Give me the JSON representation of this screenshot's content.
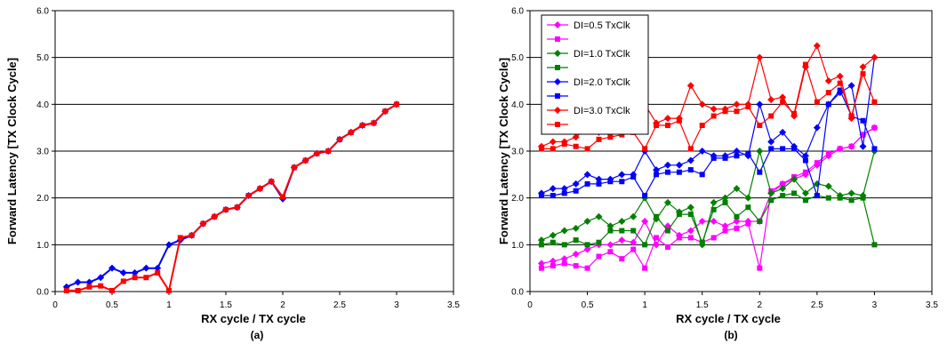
{
  "chart_data": [
    {
      "type": "line",
      "caption": "(a)",
      "xlabel": "RX cycle / TX cycle",
      "ylabel": "Forward Latency [TX Clock Cycle]",
      "xlim": [
        0,
        3.5
      ],
      "ylim": [
        0,
        6
      ],
      "x_ticks": [
        "0",
        "0.5",
        "1",
        "1.5",
        "2",
        "2.5",
        "3",
        "3.5"
      ],
      "y_ticks": [
        "0.0",
        "1.0",
        "2.0",
        "3.0",
        "4.0",
        "5.0",
        "6.0"
      ],
      "grid": "horizontal",
      "series": [
        {
          "color": "#0000ff",
          "marker": "diamond",
          "x": [
            0.1,
            0.2,
            0.3,
            0.4,
            0.5,
            0.6,
            0.7,
            0.8,
            0.9,
            1.0,
            1.1,
            1.2,
            1.3,
            1.4,
            1.5,
            1.6,
            1.7,
            1.8,
            1.9,
            2.0,
            2.1,
            2.2,
            2.3,
            2.4,
            2.5,
            2.6,
            2.7,
            2.8,
            2.9,
            3.0
          ],
          "y": [
            0.1,
            0.2,
            0.2,
            0.3,
            0.5,
            0.4,
            0.4,
            0.5,
            0.5,
            1.0,
            1.1,
            1.2,
            1.45,
            1.6,
            1.75,
            1.8,
            2.05,
            2.2,
            2.35,
            1.98,
            2.65,
            2.8,
            2.95,
            3.0,
            3.25,
            3.4,
            3.55,
            3.6,
            3.85,
            4.0
          ]
        },
        {
          "color": "#ff0000",
          "marker": "square",
          "x": [
            0.1,
            0.2,
            0.3,
            0.4,
            0.5,
            0.6,
            0.7,
            0.8,
            0.9,
            1.0,
            1.1,
            1.2,
            1.3,
            1.4,
            1.5,
            1.6,
            1.7,
            1.8,
            1.9,
            2.0,
            2.1,
            2.2,
            2.3,
            2.4,
            2.5,
            2.6,
            2.7,
            2.8,
            2.9,
            3.0
          ],
          "y": [
            0.02,
            0.02,
            0.1,
            0.12,
            0.02,
            0.22,
            0.3,
            0.3,
            0.4,
            0.02,
            1.15,
            1.2,
            1.45,
            1.6,
            1.75,
            1.8,
            2.05,
            2.2,
            2.35,
            2.02,
            2.65,
            2.8,
            2.95,
            3.0,
            3.25,
            3.4,
            3.55,
            3.6,
            3.85,
            4.0
          ]
        }
      ]
    },
    {
      "type": "line",
      "caption": "(b)",
      "xlabel": "RX cycle / TX cycle",
      "ylabel": "Forward Latency [TX Clock Cycle]",
      "xlim": [
        0,
        3.5
      ],
      "ylim": [
        0,
        6
      ],
      "x_ticks": [
        "0",
        "0.5",
        "1",
        "1.5",
        "2",
        "2.5",
        "3",
        "3.5"
      ],
      "y_ticks": [
        "0.0",
        "1.0",
        "2.0",
        "3.0",
        "4.0",
        "5.0",
        "6.0"
      ],
      "grid": "horizontal",
      "legend_position": "top-left",
      "series": [
        {
          "name": "DI=0.5 TxClk",
          "color": "#ff00ff",
          "marker": "diamond",
          "x": [
            0.1,
            0.2,
            0.3,
            0.4,
            0.5,
            0.6,
            0.7,
            0.8,
            0.9,
            1.0,
            1.1,
            1.2,
            1.3,
            1.4,
            1.5,
            1.6,
            1.7,
            1.8,
            1.9,
            2.0,
            2.1,
            2.2,
            2.3,
            2.4,
            2.5,
            2.6,
            2.7,
            2.8,
            2.9,
            3.0
          ],
          "y": [
            0.6,
            0.65,
            0.7,
            0.8,
            0.9,
            1.0,
            1.0,
            1.1,
            1.05,
            1.5,
            1.0,
            1.4,
            1.2,
            1.3,
            1.5,
            1.5,
            1.4,
            1.5,
            1.5,
            1.5,
            2.1,
            2.3,
            2.4,
            2.5,
            2.7,
            2.9,
            3.05,
            3.1,
            3.35,
            3.5
          ]
        },
        {
          "name": "",
          "color": "#ff00ff",
          "marker": "square",
          "x": [
            0.1,
            0.2,
            0.3,
            0.4,
            0.5,
            0.6,
            0.7,
            0.8,
            0.9,
            1.0,
            1.1,
            1.2,
            1.3,
            1.4,
            1.5,
            1.6,
            1.7,
            1.8,
            1.9,
            2.0,
            2.1,
            2.2,
            2.3,
            2.4,
            2.5,
            2.6,
            2.7,
            2.8,
            2.9,
            3.0
          ],
          "y": [
            0.5,
            0.55,
            0.6,
            0.55,
            0.5,
            0.75,
            0.85,
            0.7,
            0.9,
            0.5,
            1.15,
            0.95,
            1.15,
            1.15,
            1.05,
            1.15,
            1.3,
            1.35,
            1.45,
            0.5,
            2.15,
            2.3,
            2.45,
            2.55,
            2.75,
            2.95,
            3.05,
            3.1,
            3.35,
            3.5
          ]
        },
        {
          "name": "DI=1.0 TxClk",
          "color": "#008000",
          "marker": "diamond",
          "x": [
            0.1,
            0.2,
            0.3,
            0.4,
            0.5,
            0.6,
            0.7,
            0.8,
            0.9,
            1.0,
            1.1,
            1.2,
            1.3,
            1.4,
            1.5,
            1.6,
            1.7,
            1.8,
            1.9,
            2.0,
            2.1,
            2.2,
            2.3,
            2.4,
            2.5,
            2.6,
            2.7,
            2.8,
            2.9,
            3.0
          ],
          "y": [
            1.1,
            1.2,
            1.3,
            1.35,
            1.5,
            1.6,
            1.4,
            1.5,
            1.6,
            2.0,
            1.55,
            1.9,
            1.7,
            1.8,
            1.0,
            1.9,
            2.0,
            2.2,
            2.0,
            3.0,
            2.1,
            2.2,
            2.4,
            2.1,
            2.3,
            2.25,
            2.05,
            2.1,
            2.05,
            3.0
          ]
        },
        {
          "name": "",
          "color": "#008000",
          "marker": "square",
          "x": [
            0.1,
            0.2,
            0.3,
            0.4,
            0.5,
            0.6,
            0.7,
            0.8,
            0.9,
            1.0,
            1.1,
            1.2,
            1.3,
            1.4,
            1.5,
            1.6,
            1.7,
            1.8,
            1.9,
            2.0,
            2.1,
            2.2,
            2.3,
            2.4,
            2.5,
            2.6,
            2.7,
            2.8,
            2.9,
            3.0
          ],
          "y": [
            1.0,
            1.05,
            1.0,
            1.1,
            1.0,
            1.05,
            1.3,
            1.3,
            1.3,
            1.0,
            1.6,
            1.3,
            1.65,
            1.65,
            1.05,
            1.75,
            1.9,
            1.6,
            1.8,
            1.5,
            1.95,
            2.05,
            2.1,
            1.95,
            2.05,
            2.0,
            2.0,
            1.95,
            2.0,
            1.0
          ]
        },
        {
          "name": "DI=2.0 TxClk",
          "color": "#0000ff",
          "marker": "diamond",
          "x": [
            0.1,
            0.2,
            0.3,
            0.4,
            0.5,
            0.6,
            0.7,
            0.8,
            0.9,
            1.0,
            1.1,
            1.2,
            1.3,
            1.4,
            1.5,
            1.6,
            1.7,
            1.8,
            1.9,
            2.0,
            2.1,
            2.2,
            2.3,
            2.4,
            2.5,
            2.6,
            2.7,
            2.8,
            2.9,
            3.0
          ],
          "y": [
            2.1,
            2.2,
            2.2,
            2.3,
            2.5,
            2.4,
            2.4,
            2.5,
            2.5,
            3.0,
            2.6,
            2.7,
            2.7,
            2.8,
            3.0,
            2.9,
            2.9,
            3.0,
            2.9,
            4.0,
            3.2,
            3.4,
            3.1,
            2.9,
            3.5,
            4.0,
            4.25,
            4.4,
            3.1,
            5.0
          ]
        },
        {
          "name": "",
          "color": "#0000ff",
          "marker": "square",
          "x": [
            0.1,
            0.2,
            0.3,
            0.4,
            0.5,
            0.6,
            0.7,
            0.8,
            0.9,
            1.0,
            1.1,
            1.2,
            1.3,
            1.4,
            1.5,
            1.6,
            1.7,
            1.8,
            1.9,
            2.0,
            2.1,
            2.2,
            2.3,
            2.4,
            2.5,
            2.6,
            2.7,
            2.8,
            2.9,
            3.0
          ],
          "y": [
            2.05,
            2.05,
            2.1,
            2.15,
            2.3,
            2.3,
            2.35,
            2.35,
            2.45,
            2.05,
            2.5,
            2.55,
            2.55,
            2.6,
            2.5,
            2.85,
            2.85,
            2.9,
            2.95,
            2.55,
            3.05,
            3.05,
            3.05,
            2.8,
            2.05,
            4.0,
            4.3,
            3.75,
            3.65,
            3.05
          ]
        },
        {
          "name": "DI=3.0 TxClk",
          "color": "#ff0000",
          "marker": "diamond",
          "x": [
            0.1,
            0.2,
            0.3,
            0.4,
            0.5,
            0.6,
            0.7,
            0.8,
            0.9,
            1.0,
            1.1,
            1.2,
            1.3,
            1.4,
            1.5,
            1.6,
            1.7,
            1.8,
            1.9,
            2.0,
            2.1,
            2.2,
            2.3,
            2.4,
            2.5,
            2.6,
            2.7,
            2.8,
            2.9,
            3.0
          ],
          "y": [
            3.1,
            3.2,
            3.2,
            3.3,
            3.5,
            3.4,
            3.7,
            3.5,
            3.5,
            4.0,
            3.6,
            3.7,
            3.7,
            4.4,
            4.0,
            3.9,
            3.9,
            4.0,
            4.0,
            5.0,
            4.1,
            4.15,
            3.75,
            4.8,
            5.25,
            4.5,
            4.6,
            3.7,
            4.8,
            5.0
          ]
        },
        {
          "name": "",
          "color": "#ff0000",
          "marker": "square",
          "x": [
            0.1,
            0.2,
            0.3,
            0.4,
            0.5,
            0.6,
            0.7,
            0.8,
            0.9,
            1.0,
            1.1,
            1.2,
            1.3,
            1.4,
            1.5,
            1.6,
            1.7,
            1.8,
            1.9,
            2.0,
            2.1,
            2.2,
            2.3,
            2.4,
            2.5,
            2.6,
            2.7,
            2.8,
            2.9,
            3.0
          ],
          "y": [
            3.05,
            3.05,
            3.15,
            3.1,
            3.05,
            3.25,
            3.3,
            3.35,
            3.4,
            3.05,
            3.55,
            3.55,
            3.65,
            3.05,
            3.55,
            3.75,
            3.85,
            3.85,
            3.95,
            3.55,
            3.75,
            4.05,
            3.8,
            4.85,
            4.05,
            4.25,
            4.45,
            3.75,
            4.65,
            4.05
          ]
        }
      ]
    }
  ]
}
